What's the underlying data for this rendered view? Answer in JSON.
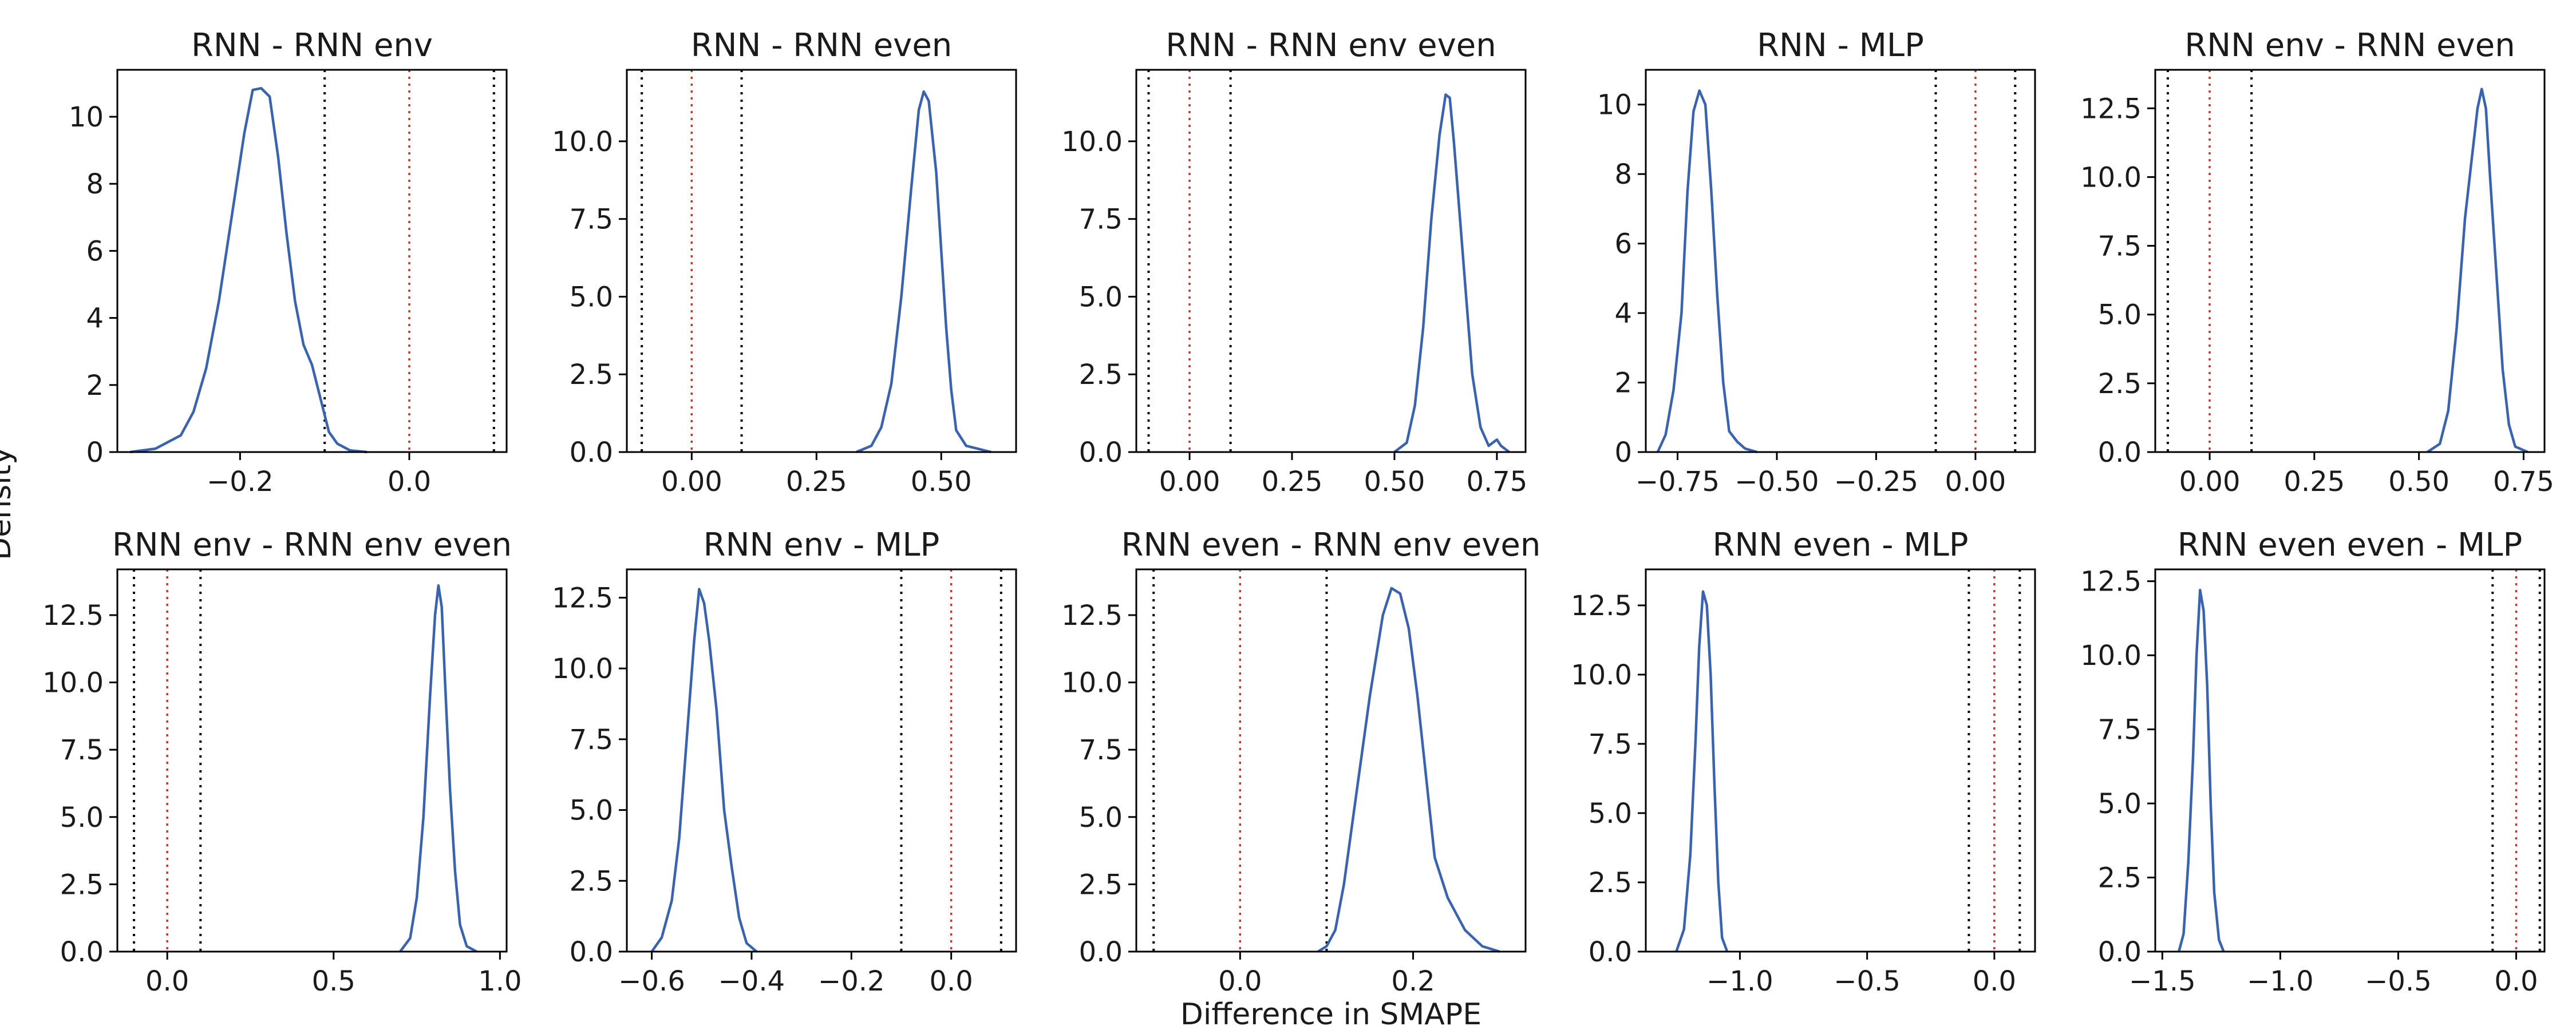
{
  "figure": {
    "xlabel": "Difference in SMAPE",
    "ylabel": "Density"
  },
  "chart_data": [
    {
      "type": "line",
      "title": "RNN - RNN env",
      "xlim": [
        -0.345,
        0.115
      ],
      "ylim": [
        0,
        11.4
      ],
      "xticks": [
        -0.2,
        0.0
      ],
      "xtick_labels": [
        "−0.2",
        "0.0"
      ],
      "yticks": [
        0,
        2,
        4,
        6,
        8,
        10
      ],
      "ytick_labels": [
        "0",
        "2",
        "4",
        "6",
        "8",
        "10"
      ],
      "zero_line": 0.0,
      "rope": [
        -0.1,
        0.1
      ],
      "series": [
        {
          "x": [
            -0.33,
            -0.3,
            -0.27,
            -0.255,
            -0.24,
            -0.225,
            -0.21,
            -0.195,
            -0.185,
            -0.175,
            -0.165,
            -0.155,
            -0.145,
            -0.135,
            -0.125,
            -0.115,
            -0.105,
            -0.095,
            -0.085,
            -0.07,
            -0.05
          ],
          "y": [
            0.0,
            0.1,
            0.5,
            1.2,
            2.5,
            4.5,
            7.0,
            9.5,
            10.8,
            10.85,
            10.6,
            8.8,
            6.5,
            4.5,
            3.2,
            2.6,
            1.6,
            0.6,
            0.25,
            0.05,
            0.0
          ]
        }
      ]
    },
    {
      "type": "line",
      "title": "RNN - RNN even",
      "xlim": [
        -0.13,
        0.65
      ],
      "ylim": [
        0,
        12.3
      ],
      "xticks": [
        0.0,
        0.25,
        0.5
      ],
      "xtick_labels": [
        "0.00",
        "0.25",
        "0.50"
      ],
      "yticks": [
        0.0,
        2.5,
        5.0,
        7.5,
        10.0
      ],
      "ytick_labels": [
        "0.0",
        "2.5",
        "5.0",
        "7.5",
        "10.0"
      ],
      "zero_line": 0.0,
      "rope": [
        -0.1,
        0.1
      ],
      "series": [
        {
          "x": [
            0.33,
            0.36,
            0.38,
            0.4,
            0.42,
            0.44,
            0.455,
            0.465,
            0.475,
            0.49,
            0.5,
            0.51,
            0.52,
            0.53,
            0.55,
            0.6
          ],
          "y": [
            0.0,
            0.2,
            0.8,
            2.2,
            5.0,
            8.5,
            11.0,
            11.6,
            11.3,
            9.0,
            6.5,
            4.0,
            2.0,
            0.7,
            0.2,
            0.0
          ]
        }
      ]
    },
    {
      "type": "line",
      "title": "RNN - RNN env even",
      "xlim": [
        -0.13,
        0.82
      ],
      "ylim": [
        0,
        12.3
      ],
      "xticks": [
        0.0,
        0.25,
        0.5,
        0.75
      ],
      "xtick_labels": [
        "0.00",
        "0.25",
        "0.50",
        "0.75"
      ],
      "yticks": [
        0.0,
        2.5,
        5.0,
        7.5,
        10.0
      ],
      "ytick_labels": [
        "0.0",
        "2.5",
        "5.0",
        "7.5",
        "10.0"
      ],
      "zero_line": 0.0,
      "rope": [
        -0.1,
        0.1
      ],
      "series": [
        {
          "x": [
            0.5,
            0.53,
            0.55,
            0.57,
            0.59,
            0.61,
            0.625,
            0.635,
            0.645,
            0.66,
            0.675,
            0.69,
            0.71,
            0.73,
            0.75,
            0.76,
            0.78
          ],
          "y": [
            0.0,
            0.3,
            1.5,
            4.0,
            7.5,
            10.2,
            11.5,
            11.4,
            10.0,
            7.5,
            5.0,
            2.5,
            0.8,
            0.2,
            0.4,
            0.2,
            0.0
          ]
        }
      ]
    },
    {
      "type": "line",
      "title": "RNN - MLP",
      "xlim": [
        -0.83,
        0.15
      ],
      "ylim": [
        0,
        11.0
      ],
      "xticks": [
        -0.75,
        -0.5,
        -0.25,
        0.0
      ],
      "xtick_labels": [
        "−0.75",
        "−0.50",
        "−0.25",
        "0.00"
      ],
      "yticks": [
        0,
        2,
        4,
        6,
        8,
        10
      ],
      "ytick_labels": [
        "0",
        "2",
        "4",
        "6",
        "8",
        "10"
      ],
      "zero_line": 0.0,
      "rope": [
        -0.1,
        0.1
      ],
      "series": [
        {
          "x": [
            -0.8,
            -0.78,
            -0.76,
            -0.74,
            -0.725,
            -0.71,
            -0.695,
            -0.68,
            -0.665,
            -0.65,
            -0.635,
            -0.62,
            -0.6,
            -0.58,
            -0.55
          ],
          "y": [
            0.0,
            0.5,
            1.8,
            4.0,
            7.5,
            9.8,
            10.4,
            10.0,
            7.5,
            4.5,
            2.0,
            0.6,
            0.3,
            0.1,
            0.0
          ]
        }
      ]
    },
    {
      "type": "line",
      "title": "RNN env - RNN even",
      "xlim": [
        -0.13,
        0.8
      ],
      "ylim": [
        0,
        13.9
      ],
      "xticks": [
        0.0,
        0.25,
        0.5,
        0.75
      ],
      "xtick_labels": [
        "0.00",
        "0.25",
        "0.50",
        "0.75"
      ],
      "yticks": [
        0.0,
        2.5,
        5.0,
        7.5,
        10.0,
        12.5
      ],
      "ytick_labels": [
        "0.0",
        "2.5",
        "5.0",
        "7.5",
        "10.0",
        "12.5"
      ],
      "zero_line": 0.0,
      "rope": [
        -0.1,
        0.1
      ],
      "series": [
        {
          "x": [
            0.52,
            0.55,
            0.57,
            0.59,
            0.61,
            0.625,
            0.64,
            0.65,
            0.66,
            0.67,
            0.685,
            0.7,
            0.715,
            0.73,
            0.76
          ],
          "y": [
            0.0,
            0.3,
            1.5,
            4.5,
            8.5,
            10.5,
            12.5,
            13.2,
            12.5,
            10.0,
            6.5,
            3.0,
            1.0,
            0.2,
            0.0
          ]
        }
      ]
    },
    {
      "type": "line",
      "title": "RNN env - RNN env even",
      "xlim": [
        -0.15,
        1.02
      ],
      "ylim": [
        0,
        14.2
      ],
      "xticks": [
        0.0,
        0.5,
        1.0
      ],
      "xtick_labels": [
        "0.0",
        "0.5",
        "1.0"
      ],
      "yticks": [
        0.0,
        2.5,
        5.0,
        7.5,
        10.0,
        12.5
      ],
      "ytick_labels": [
        "0.0",
        "2.5",
        "5.0",
        "7.5",
        "10.0",
        "12.5"
      ],
      "zero_line": 0.0,
      "rope": [
        -0.1,
        0.1
      ],
      "series": [
        {
          "x": [
            0.7,
            0.73,
            0.75,
            0.77,
            0.79,
            0.805,
            0.815,
            0.825,
            0.835,
            0.85,
            0.865,
            0.88,
            0.9,
            0.93
          ],
          "y": [
            0.0,
            0.5,
            2.0,
            5.0,
            9.5,
            12.5,
            13.6,
            12.8,
            10.0,
            6.0,
            3.0,
            1.0,
            0.2,
            0.0
          ]
        }
      ]
    },
    {
      "type": "line",
      "title": "RNN env - MLP",
      "xlim": [
        -0.65,
        0.13
      ],
      "ylim": [
        0,
        13.5
      ],
      "xticks": [
        -0.6,
        -0.4,
        -0.2,
        0.0
      ],
      "xtick_labels": [
        "−0.6",
        "−0.4",
        "−0.2",
        "0.0"
      ],
      "yticks": [
        0.0,
        2.5,
        5.0,
        7.5,
        10.0,
        12.5
      ],
      "ytick_labels": [
        "0.0",
        "2.5",
        "5.0",
        "7.5",
        "10.0",
        "12.5"
      ],
      "zero_line": 0.0,
      "rope": [
        -0.1,
        0.1
      ],
      "series": [
        {
          "x": [
            -0.6,
            -0.58,
            -0.56,
            -0.545,
            -0.53,
            -0.515,
            -0.505,
            -0.495,
            -0.485,
            -0.47,
            -0.455,
            -0.44,
            -0.425,
            -0.41,
            -0.39
          ],
          "y": [
            0.0,
            0.5,
            1.8,
            4.0,
            7.5,
            11.0,
            12.8,
            12.3,
            11.0,
            8.5,
            5.0,
            3.0,
            1.2,
            0.3,
            0.0
          ]
        }
      ]
    },
    {
      "type": "line",
      "title": "RNN even - RNN env even",
      "xlim": [
        -0.12,
        0.33
      ],
      "ylim": [
        0,
        14.2
      ],
      "xticks": [
        0.0,
        0.2
      ],
      "xtick_labels": [
        "0.0",
        "0.2"
      ],
      "yticks": [
        0.0,
        2.5,
        5.0,
        7.5,
        10.0,
        12.5
      ],
      "ytick_labels": [
        "0.0",
        "2.5",
        "5.0",
        "7.5",
        "10.0",
        "12.5"
      ],
      "zero_line": 0.0,
      "rope": [
        -0.1,
        0.1
      ],
      "series": [
        {
          "x": [
            0.09,
            0.1,
            0.11,
            0.12,
            0.135,
            0.15,
            0.165,
            0.175,
            0.185,
            0.195,
            0.205,
            0.215,
            0.225,
            0.24,
            0.26,
            0.28,
            0.3
          ],
          "y": [
            0.0,
            0.2,
            0.8,
            2.5,
            6.0,
            9.5,
            12.5,
            13.5,
            13.3,
            12.0,
            9.5,
            6.5,
            3.5,
            2.0,
            0.8,
            0.2,
            0.0
          ]
        }
      ]
    },
    {
      "type": "line",
      "title": "RNN even - MLP",
      "xlim": [
        -1.37,
        0.16
      ],
      "ylim": [
        0,
        13.8
      ],
      "xticks": [
        -1.0,
        -0.5,
        0.0
      ],
      "xtick_labels": [
        "−1.0",
        "−0.5",
        "0.0"
      ],
      "yticks": [
        0.0,
        2.5,
        5.0,
        7.5,
        10.0,
        12.5
      ],
      "ytick_labels": [
        "0.0",
        "2.5",
        "5.0",
        "7.5",
        "10.0",
        "12.5"
      ],
      "zero_line": 0.0,
      "rope": [
        -0.1,
        0.1
      ],
      "series": [
        {
          "x": [
            -1.25,
            -1.22,
            -1.195,
            -1.175,
            -1.16,
            -1.145,
            -1.13,
            -1.115,
            -1.1,
            -1.085,
            -1.07,
            -1.05
          ],
          "y": [
            0.0,
            0.8,
            3.5,
            7.5,
            11.0,
            13.0,
            12.5,
            10.0,
            6.0,
            2.5,
            0.5,
            0.0
          ]
        }
      ]
    },
    {
      "type": "line",
      "title": "RNN even even - MLP",
      "xlim": [
        -1.53,
        0.12
      ],
      "ylim": [
        0,
        12.9
      ],
      "xticks": [
        -1.5,
        -1.0,
        -0.5,
        0.0
      ],
      "xtick_labels": [
        "−1.5",
        "−1.0",
        "−0.5",
        "0.0"
      ],
      "yticks": [
        0.0,
        2.5,
        5.0,
        7.5,
        10.0,
        12.5
      ],
      "ytick_labels": [
        "0.0",
        "2.5",
        "5.0",
        "7.5",
        "10.0",
        "12.5"
      ],
      "zero_line": 0.0,
      "rope": [
        -0.1,
        0.1
      ],
      "series": [
        {
          "x": [
            -1.43,
            -1.41,
            -1.39,
            -1.37,
            -1.355,
            -1.34,
            -1.325,
            -1.31,
            -1.295,
            -1.28,
            -1.26,
            -1.24
          ],
          "y": [
            0.0,
            0.6,
            3.0,
            6.5,
            10.0,
            12.2,
            11.5,
            9.0,
            5.0,
            2.0,
            0.4,
            0.0
          ]
        }
      ]
    }
  ]
}
